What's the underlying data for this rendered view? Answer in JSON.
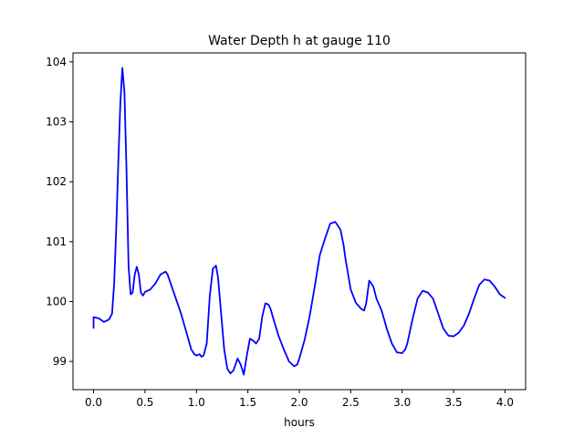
{
  "chart_data": {
    "type": "line",
    "title": "Water Depth h at gauge 110",
    "xlabel": "hours",
    "ylabel": "",
    "xlim": [
      -0.2,
      4.2
    ],
    "ylim": [
      98.53,
      104.15
    ],
    "x_ticks": [
      0.0,
      0.5,
      1.0,
      1.5,
      2.0,
      2.5,
      3.0,
      3.5,
      4.0
    ],
    "x_tick_labels": [
      "0.0",
      "0.5",
      "1.0",
      "1.5",
      "2.0",
      "2.5",
      "3.0",
      "3.5",
      "4.0"
    ],
    "y_ticks": [
      99,
      100,
      101,
      102,
      103,
      104
    ],
    "y_tick_labels": [
      "99",
      "100",
      "101",
      "102",
      "103",
      "104"
    ],
    "grid": false,
    "legend": "none",
    "series": [
      {
        "color": "#0000ff",
        "x": [
          0.0,
          0.0,
          0.05,
          0.1,
          0.15,
          0.18,
          0.2,
          0.22,
          0.24,
          0.26,
          0.28,
          0.3,
          0.32,
          0.34,
          0.36,
          0.38,
          0.4,
          0.42,
          0.44,
          0.46,
          0.48,
          0.5,
          0.55,
          0.6,
          0.65,
          0.7,
          0.72,
          0.75,
          0.8,
          0.85,
          0.9,
          0.95,
          0.98,
          1.0,
          1.03,
          1.05,
          1.07,
          1.1,
          1.13,
          1.16,
          1.19,
          1.21,
          1.24,
          1.27,
          1.3,
          1.33,
          1.36,
          1.4,
          1.43,
          1.46,
          1.49,
          1.52,
          1.55,
          1.58,
          1.61,
          1.64,
          1.67,
          1.7,
          1.72,
          1.75,
          1.8,
          1.85,
          1.9,
          1.95,
          1.98,
          2.0,
          2.05,
          2.1,
          2.15,
          2.2,
          2.25,
          2.3,
          2.35,
          2.4,
          2.43,
          2.45,
          2.5,
          2.55,
          2.6,
          2.63,
          2.65,
          2.68,
          2.72,
          2.75,
          2.8,
          2.85,
          2.9,
          2.95,
          3.0,
          3.03,
          3.05,
          3.1,
          3.15,
          3.2,
          3.25,
          3.3,
          3.35,
          3.4,
          3.45,
          3.5,
          3.55,
          3.6,
          3.65,
          3.7,
          3.75,
          3.8,
          3.85,
          3.9,
          3.95,
          4.0
        ],
        "y": [
          99.56,
          99.74,
          99.72,
          99.66,
          99.7,
          99.8,
          100.3,
          101.2,
          102.3,
          103.3,
          103.9,
          103.5,
          102.2,
          100.6,
          100.12,
          100.15,
          100.45,
          100.58,
          100.45,
          100.15,
          100.1,
          100.16,
          100.2,
          100.3,
          100.45,
          100.5,
          100.45,
          100.3,
          100.05,
          99.8,
          99.5,
          99.2,
          99.12,
          99.1,
          99.12,
          99.08,
          99.1,
          99.3,
          100.1,
          100.55,
          100.6,
          100.4,
          99.8,
          99.2,
          98.88,
          98.8,
          98.85,
          99.05,
          98.95,
          98.78,
          99.1,
          99.38,
          99.35,
          99.3,
          99.38,
          99.75,
          99.97,
          99.95,
          99.88,
          99.7,
          99.42,
          99.2,
          99.0,
          98.92,
          98.95,
          99.05,
          99.35,
          99.75,
          100.25,
          100.78,
          101.05,
          101.3,
          101.33,
          101.2,
          100.95,
          100.7,
          100.2,
          99.98,
          99.88,
          99.85,
          99.97,
          100.35,
          100.25,
          100.05,
          99.85,
          99.55,
          99.3,
          99.15,
          99.14,
          99.2,
          99.3,
          99.7,
          100.05,
          100.18,
          100.15,
          100.05,
          99.8,
          99.55,
          99.43,
          99.42,
          99.48,
          99.6,
          99.8,
          100.05,
          100.28,
          100.37,
          100.35,
          100.25,
          100.12,
          100.06
        ]
      }
    ]
  }
}
